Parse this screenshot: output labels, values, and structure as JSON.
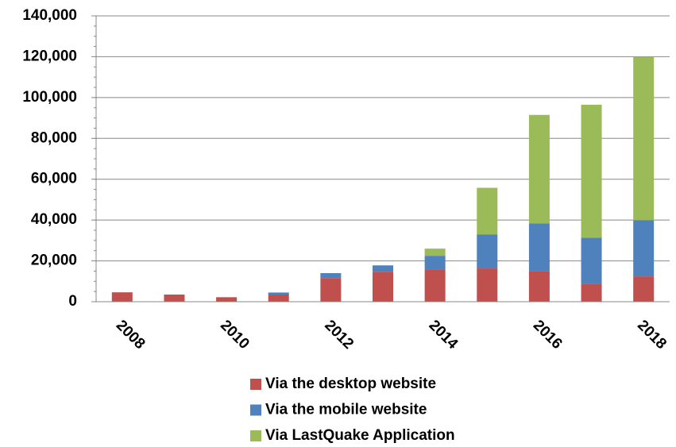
{
  "chart_data": {
    "type": "stacked-bar",
    "categories": [
      "2008",
      null,
      "2010",
      null,
      "2012",
      null,
      "2014",
      null,
      "2016",
      null,
      "2018"
    ],
    "series": [
      {
        "name": "Via the desktop website",
        "color": "#c0504d",
        "values": [
          4600,
          3500,
          2200,
          3500,
          11600,
          14700,
          15900,
          16300,
          15100,
          8900,
          12400
        ]
      },
      {
        "name": "Via the mobile website",
        "color": "#4f81bd",
        "values": [
          0,
          0,
          0,
          1000,
          2400,
          3100,
          6600,
          16700,
          23300,
          22500,
          27500
        ]
      },
      {
        "name": "Via LastQuake Application",
        "color": "#9bbb59",
        "values": [
          0,
          0,
          0,
          0,
          0,
          0,
          3500,
          22800,
          53100,
          65100,
          80100
        ]
      }
    ],
    "ylim": [
      0,
      140000
    ],
    "yticks": [
      0,
      {
        "value": 20000,
        "label": "20,000"
      },
      {
        "value": 40000,
        "label": "40,000"
      },
      {
        "value": 60000,
        "label": "60,000"
      },
      {
        "value": 80000,
        "label": "80,000"
      },
      {
        "value": 100000,
        "label": "100,000"
      },
      {
        "value": 120000,
        "label": "120,000"
      },
      {
        "value": 140000,
        "label": "140,000"
      }
    ],
    "grid": true
  }
}
